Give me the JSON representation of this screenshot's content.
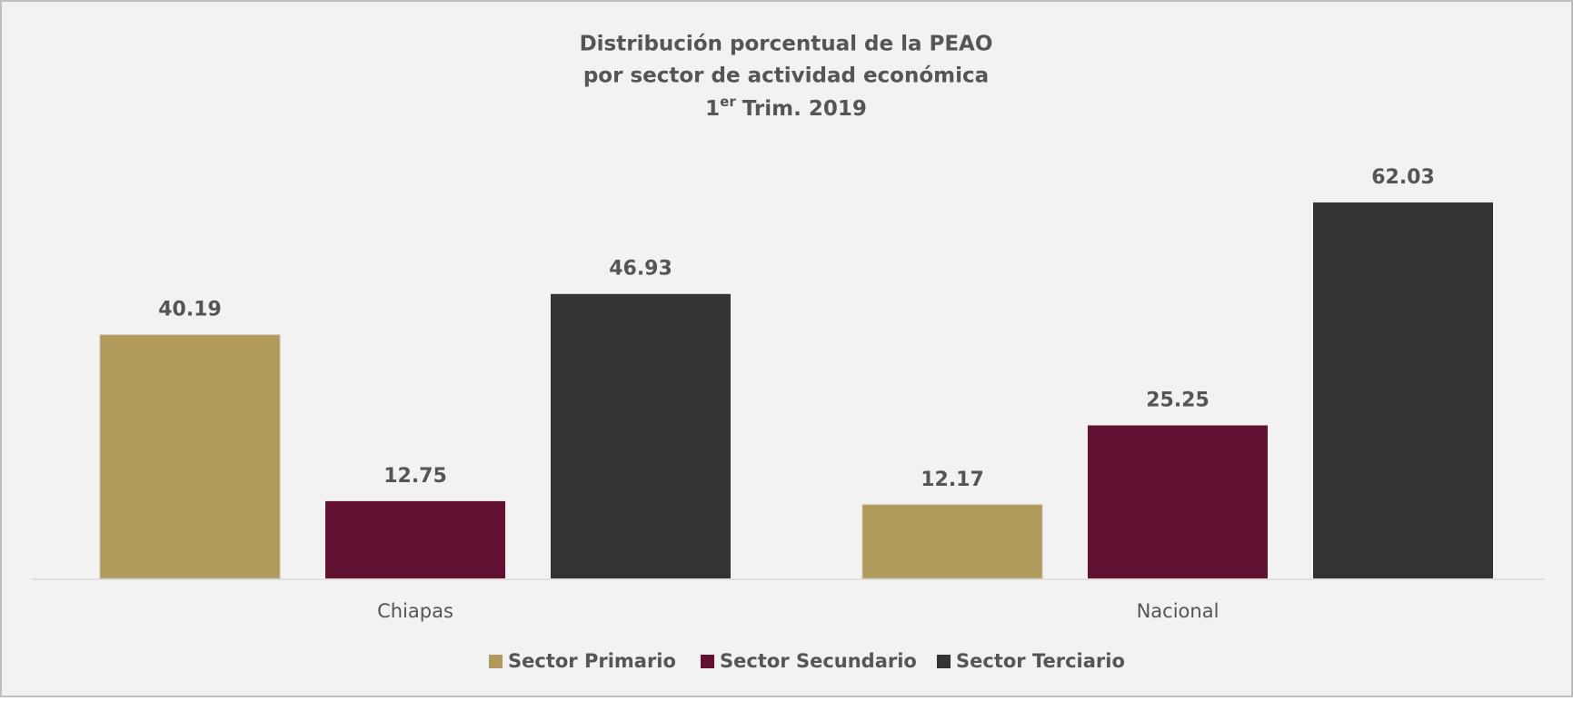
{
  "chart_data": {
    "type": "bar",
    "title": [
      "Distribución porcentual de la PEAO",
      "por sector de actividad económica"
    ],
    "title_line3": {
      "base": "1",
      "superscript": "er",
      "rest": "Trim. 2019"
    },
    "categories": [
      "Chiapas",
      "Nacional"
    ],
    "series": [
      {
        "name": "Sector Primario",
        "color": "#b09a5b",
        "values": [
          40.19,
          12.17
        ]
      },
      {
        "name": "Sector Secundario",
        "color": "#621132",
        "values": [
          12.75,
          25.25
        ]
      },
      {
        "name": "Sector Terciario",
        "color": "#333333",
        "values": [
          46.93,
          62.03
        ]
      }
    ],
    "legend": "bottom"
  }
}
